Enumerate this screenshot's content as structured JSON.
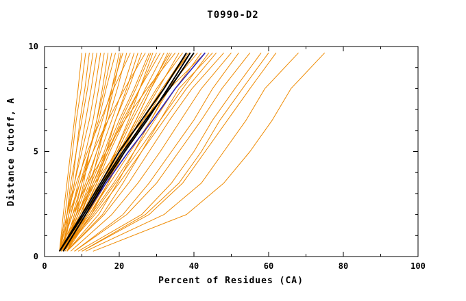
{
  "chart_data": {
    "type": "line",
    "title": "T0990-D2",
    "xlabel": "Percent of Residues (CA)",
    "ylabel": "Distance Cutoff, A",
    "xlim": [
      0,
      100
    ],
    "ylim": [
      0,
      10
    ],
    "x_major_ticks": [
      0,
      20,
      40,
      60,
      80,
      100
    ],
    "x_minor_step": 10,
    "y_major_ticks": [
      0,
      5,
      10
    ],
    "y_minor_step": 1,
    "grid": false,
    "legend": "none",
    "frame_color": "#000000",
    "y_samples": [
      0.25,
      2,
      3.5,
      5,
      6.5,
      8,
      9.7
    ],
    "series_groups": [
      {
        "name": "predictions",
        "color": "#ef8a00",
        "width": 1,
        "series": [
          [
            4,
            5,
            6,
            7,
            8,
            9,
            10
          ],
          [
            4,
            5.5,
            6.5,
            7.5,
            8.5,
            9.8,
            11
          ],
          [
            5,
            6,
            7,
            8.5,
            9.5,
            10.8,
            12
          ],
          [
            4,
            6,
            7.5,
            8.5,
            10,
            11.5,
            13
          ],
          [
            5,
            6.5,
            8,
            9.5,
            11,
            12.5,
            14
          ],
          [
            4,
            6,
            8,
            10,
            12,
            13.5,
            15
          ],
          [
            5,
            7,
            9,
            11,
            13,
            14.5,
            16
          ],
          [
            5,
            8.5,
            10.5,
            12,
            14,
            15.5,
            17
          ],
          [
            5,
            8,
            10,
            12,
            14,
            16,
            18
          ],
          [
            4.5,
            7,
            9.5,
            12,
            14.5,
            16.5,
            19
          ],
          [
            6,
            10,
            12.5,
            14.5,
            16.5,
            18,
            20
          ],
          [
            4,
            7.5,
            10,
            13,
            15.5,
            18,
            21
          ],
          [
            5,
            8.5,
            11.5,
            14,
            17,
            19.5,
            22
          ],
          [
            4,
            6,
            8.5,
            11.5,
            15,
            18.5,
            23
          ],
          [
            5,
            9,
            12,
            15,
            18,
            21,
            24
          ],
          [
            6,
            10.5,
            14,
            16.5,
            19,
            22,
            25
          ],
          [
            5,
            9,
            12.5,
            16,
            19,
            22.5,
            26
          ],
          [
            4,
            6.5,
            9.5,
            13,
            17,
            21.5,
            27
          ],
          [
            5,
            9.5,
            13,
            16.5,
            20,
            24,
            28
          ],
          [
            6,
            11.5,
            15.5,
            19,
            22.5,
            25.5,
            29
          ],
          [
            5,
            10,
            14,
            17.5,
            21.5,
            25.5,
            30
          ],
          [
            4.5,
            9,
            13,
            17,
            21,
            25.5,
            31
          ],
          [
            5,
            10.5,
            14.5,
            19,
            23,
            27,
            32
          ],
          [
            6,
            12.5,
            17,
            20.5,
            24.5,
            28.5,
            33
          ],
          [
            5,
            11,
            15.5,
            20,
            24.5,
            28.5,
            34
          ],
          [
            4,
            7.5,
            11.5,
            16.5,
            21.5,
            27.5,
            35
          ],
          [
            5,
            11.5,
            16,
            21,
            25.5,
            30.5,
            36
          ],
          [
            5,
            11,
            16,
            20.5,
            25,
            30,
            37
          ],
          [
            5,
            12,
            17,
            21.5,
            26.5,
            31.5,
            38
          ],
          [
            4.5,
            10.5,
            15.5,
            20.5,
            26,
            31.5,
            39
          ],
          [
            5,
            12,
            17.5,
            23,
            28.5,
            33.5,
            40
          ],
          [
            6,
            14.5,
            19.5,
            24,
            28.5,
            33,
            41
          ],
          [
            5,
            12.5,
            18.5,
            24,
            29.5,
            35,
            42
          ],
          [
            4,
            8.5,
            13.5,
            19.5,
            26.5,
            33.5,
            43
          ],
          [
            5,
            13,
            19,
            25,
            31,
            37,
            44
          ],
          [
            6,
            15.5,
            21,
            26,
            31,
            36,
            45
          ],
          [
            5,
            13.5,
            20,
            26,
            32,
            38,
            46
          ],
          [
            6,
            16,
            22.5,
            28,
            33.5,
            39.5,
            48
          ],
          [
            7,
            18,
            25,
            31,
            36.5,
            42,
            50
          ],
          [
            8,
            21,
            28,
            34,
            40,
            45,
            52
          ],
          [
            8,
            22,
            30,
            36,
            42,
            47.5,
            55
          ],
          [
            9,
            26,
            34,
            40,
            45,
            51,
            58
          ],
          [
            10,
            27,
            36,
            42,
            47,
            53,
            60
          ],
          [
            10,
            28,
            37,
            43,
            49,
            55,
            62
          ],
          [
            11,
            32,
            42,
            48,
            54,
            59,
            68
          ],
          [
            13,
            38,
            48,
            55,
            61,
            66,
            75
          ],
          [
            5,
            8,
            11,
            14,
            16.5,
            18.5,
            20.5
          ],
          [
            4.5,
            9.5,
            13.5,
            17,
            20.5,
            24.5,
            28.5
          ],
          [
            5.5,
            11,
            15,
            19.5,
            23.5,
            28,
            33.5
          ],
          [
            4.5,
            11.5,
            16.5,
            21.5,
            27,
            32,
            38.5
          ]
        ]
      },
      {
        "name": "highlight-blue",
        "color": "#2a23bb",
        "width": 1.6,
        "series": [
          [
            5,
            11,
            16.5,
            22.5,
            29,
            35,
            43
          ]
        ]
      },
      {
        "name": "highlight-black",
        "color": "#000000",
        "width": 2,
        "series": [
          [
            4,
            10,
            15,
            20,
            26,
            32,
            38
          ],
          [
            5,
            11,
            16,
            21.5,
            27.5,
            33,
            39
          ],
          [
            4,
            10.5,
            15.5,
            21,
            27,
            33.5,
            40
          ]
        ]
      }
    ]
  }
}
